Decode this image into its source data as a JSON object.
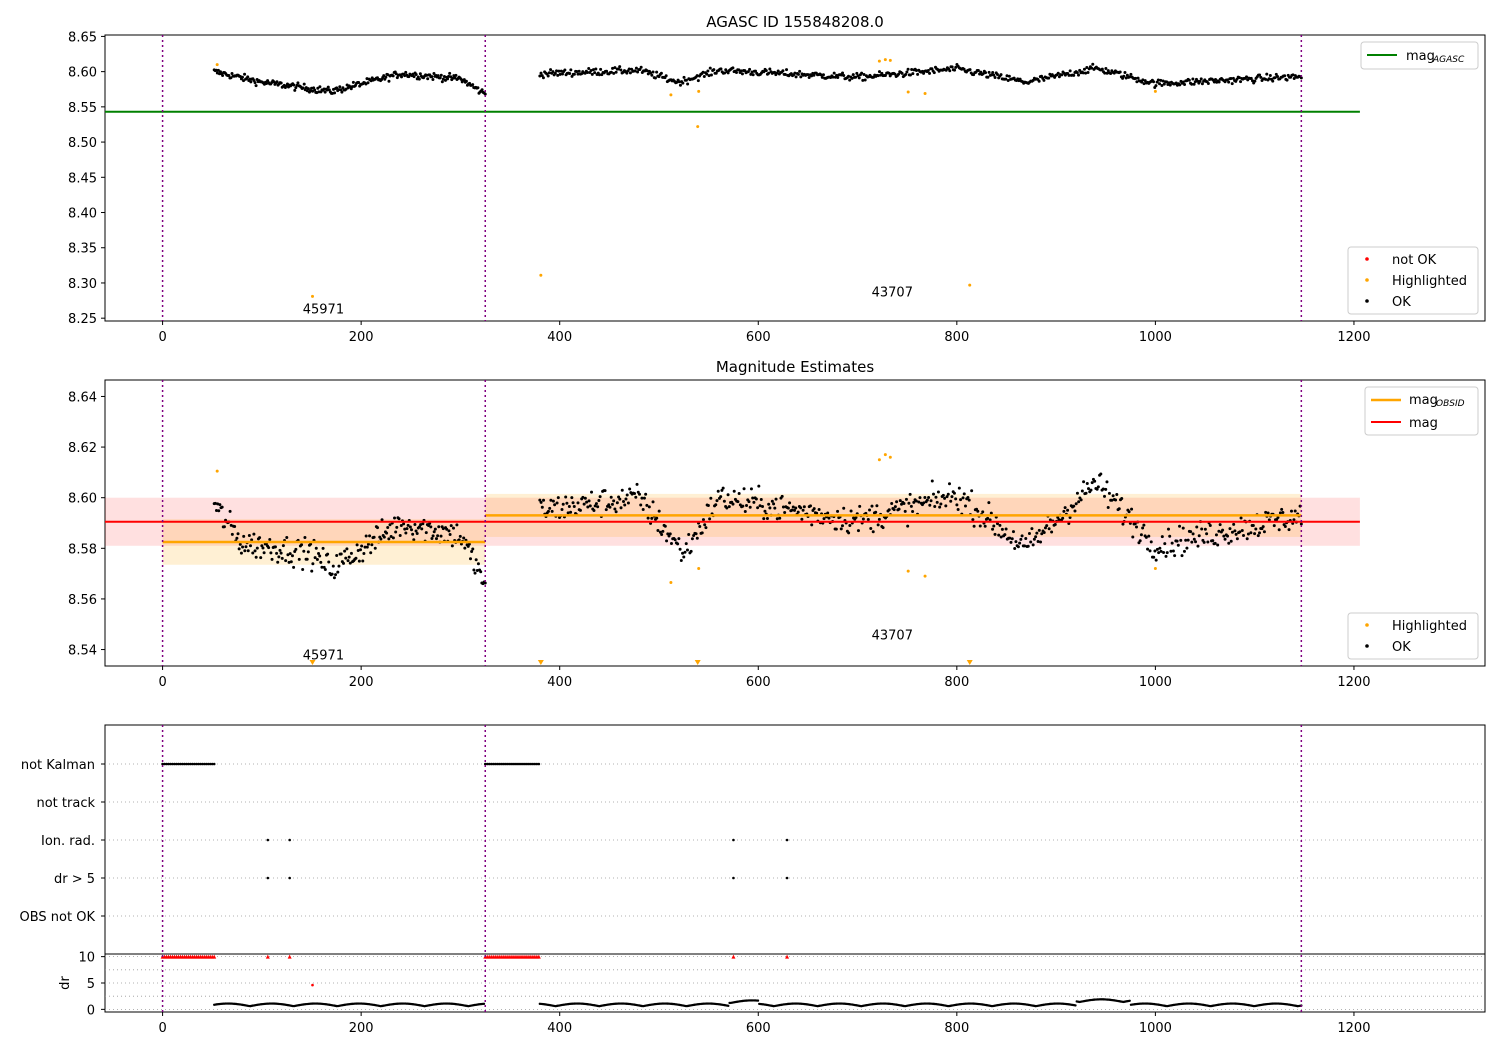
{
  "chart_data": [
    {
      "type": "scatter",
      "title": "AGASC ID 155848208.0",
      "xlim": [
        -58,
        1332
      ],
      "ylim": [
        8.246,
        8.652
      ],
      "x_ticks": [
        0,
        200,
        400,
        600,
        800,
        1000,
        1200
      ],
      "y_ticks": [
        8.25,
        8.3,
        8.35,
        8.4,
        8.45,
        8.5,
        8.55,
        8.6,
        8.65
      ],
      "y_tick_labels": [
        "8.25",
        "8.30",
        "8.35",
        "8.40",
        "8.45",
        "8.50",
        "8.55",
        "8.60",
        "8.65"
      ],
      "obs_boundaries": [
        0,
        325,
        1147
      ],
      "annotations": [
        {
          "text": "45971",
          "x": 162,
          "y": 8.264
        },
        {
          "text": "43707",
          "x": 735,
          "y": 8.288
        }
      ],
      "hlines": [
        {
          "name": "mag_AGASC",
          "label_main": "mag",
          "label_sub": "AGASC",
          "y": 8.543,
          "x_range": [
            -58,
            1206
          ],
          "color": "#008000"
        }
      ],
      "series": [
        {
          "name": "OK",
          "color": "#000000",
          "segments": [
            {
              "x_range": [
                52,
                325
              ],
              "trend": [
                [
                  52,
                  8.6
                ],
                [
                  100,
                  8.585
                ],
                [
                  170,
                  8.572
                ],
                [
                  240,
                  8.597
                ],
                [
                  300,
                  8.59
                ],
                [
                  325,
                  8.568
                ]
              ],
              "noise": 0.005,
              "n": 260
            },
            {
              "x_range": [
                380,
                1147
              ],
              "trend": [
                [
                  380,
                  8.597
                ],
                [
                  480,
                  8.602
                ],
                [
                  520,
                  8.585
                ],
                [
                  560,
                  8.602
                ],
                [
                  700,
                  8.592
                ],
                [
                  800,
                  8.604
                ],
                [
                  870,
                  8.585
                ],
                [
                  940,
                  8.605
                ],
                [
                  1000,
                  8.583
                ],
                [
                  1147,
                  8.593
                ]
              ],
              "noise": 0.005,
              "n": 640
            }
          ]
        },
        {
          "name": "Highlighted",
          "color": "#ffa500",
          "points": [
            [
              55,
              8.61
            ],
            [
              151,
              8.281
            ],
            [
              381,
              8.311
            ],
            [
              512,
              8.567
            ],
            [
              539,
              8.522
            ],
            [
              540,
              8.572
            ],
            [
              722,
              8.615
            ],
            [
              728,
              8.617
            ],
            [
              733,
              8.616
            ],
            [
              751,
              8.571
            ],
            [
              768,
              8.569
            ],
            [
              813,
              8.297
            ],
            [
              1000,
              8.572
            ]
          ]
        },
        {
          "name": "not OK",
          "color": "#ff0000",
          "points": []
        }
      ],
      "legend_upper": "top-right",
      "legend_lower": "bottom-right"
    },
    {
      "type": "scatter",
      "title": "Magnitude Estimates",
      "xlim": [
        -58,
        1332
      ],
      "ylim": [
        8.5335,
        8.6465
      ],
      "x_ticks": [
        0,
        200,
        400,
        600,
        800,
        1000,
        1200
      ],
      "y_ticks": [
        8.54,
        8.56,
        8.58,
        8.6,
        8.62,
        8.64
      ],
      "y_tick_labels": [
        "8.54",
        "8.56",
        "8.58",
        "8.60",
        "8.62",
        "8.64"
      ],
      "obs_boundaries": [
        0,
        325,
        1147
      ],
      "annotations": [
        {
          "text": "45971",
          "x": 162,
          "y": 8.538
        },
        {
          "text": "43707",
          "x": 735,
          "y": 8.546
        }
      ],
      "mag_line": {
        "name": "mag",
        "y": 8.5905,
        "band": [
          8.581,
          8.6
        ],
        "x_range": [
          -58,
          1206
        ],
        "color": "#ff0000"
      },
      "mag_obsid": [
        {
          "name": "mag_OBSID",
          "x_range": [
            0,
            325
          ],
          "y": 8.5825,
          "band": [
            8.5735,
            8.5915
          ]
        },
        {
          "name": "mag_OBSID",
          "x_range": [
            325,
            1147
          ],
          "y": 8.593,
          "band": [
            8.5845,
            8.6015
          ]
        }
      ],
      "series": [
        {
          "name": "OK",
          "color": "#000000",
          "segments": [
            {
              "x_range": [
                52,
                325
              ],
              "trend": [
                [
                  52,
                  8.597
                ],
                [
                  80,
                  8.582
                ],
                [
                  150,
                  8.578
                ],
                [
                  170,
                  8.572
                ],
                [
                  240,
                  8.59
                ],
                [
                  300,
                  8.585
                ],
                [
                  325,
                  8.566
                ]
              ],
              "noise": 0.0055,
              "n": 240
            },
            {
              "x_range": [
                380,
                1147
              ],
              "trend": [
                [
                  380,
                  8.595
                ],
                [
                  480,
                  8.6
                ],
                [
                  525,
                  8.578
                ],
                [
                  560,
                  8.6
                ],
                [
                  700,
                  8.591
                ],
                [
                  800,
                  8.601
                ],
                [
                  870,
                  8.58
                ],
                [
                  940,
                  8.606
                ],
                [
                  1000,
                  8.581
                ],
                [
                  1147,
                  8.593
                ]
              ],
              "noise": 0.0055,
              "n": 620
            }
          ]
        },
        {
          "name": "Highlighted",
          "color": "#ffa500",
          "points": [
            [
              55,
              8.6105
            ],
            [
              512,
              8.5665
            ],
            [
              540,
              8.572
            ],
            [
              722,
              8.615
            ],
            [
              728,
              8.617
            ],
            [
              733,
              8.616
            ],
            [
              751,
              8.571
            ],
            [
              768,
              8.569
            ],
            [
              1000,
              8.572
            ]
          ],
          "offscale_below": [
            151,
            381,
            539,
            813
          ]
        }
      ],
      "legend_upper": "top-right",
      "legend_lower": "bottom-right"
    },
    {
      "type": "scatter",
      "title": "",
      "xlim": [
        -58,
        1332
      ],
      "x_ticks": [
        0,
        200,
        400,
        600,
        800,
        1000,
        1200
      ],
      "obs_boundaries": [
        0,
        325,
        1147
      ],
      "flag_rows": [
        "not Kalman",
        "not track",
        "Ion. rad.",
        "dr > 5",
        "OBS not OK"
      ],
      "flags": {
        "not Kalman": [
          [
            0,
            52
          ],
          [
            325,
            380
          ]
        ],
        "not track": [],
        "Ion. rad.": [
          106,
          128,
          575,
          629
        ],
        "dr > 5": [
          106,
          128,
          575,
          629
        ],
        "OBS not OK": []
      },
      "dr_panel": {
        "ylabel": "dr",
        "ylim": [
          -0.5,
          10.5
        ],
        "y_ticks": [
          0,
          5,
          10
        ],
        "y_tick_labels": [
          "0",
          "5",
          "10"
        ],
        "red_capped": [
          [
            0,
            52
          ],
          [
            325,
            380
          ],
          [
            106
          ],
          [
            128
          ],
          [
            575
          ],
          [
            629
          ]
        ],
        "red_points": [
          [
            151,
            4.6
          ]
        ],
        "dr_segments": [
          [
            52,
            325
          ],
          [
            380,
            1147
          ]
        ]
      }
    }
  ]
}
